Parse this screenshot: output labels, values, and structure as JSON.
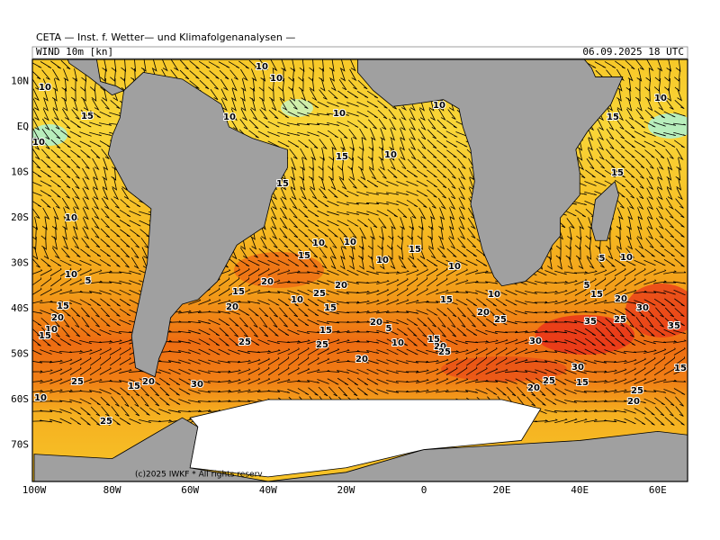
{
  "header": {
    "title": "CETA — Inst. f. Wetter— und Klimafolgenanalysen —",
    "field": "WIND 10m [kn]",
    "valid_time": "06.09.2025 18 UTC"
  },
  "map": {
    "lat_labels": [
      "10N",
      "EQ",
      "10S",
      "20S",
      "30S",
      "40S",
      "50S",
      "60S",
      "70S"
    ],
    "lon_labels": [
      "100W",
      "80W",
      "60W",
      "40W",
      "20W",
      "0",
      "20E",
      "40E",
      "60E"
    ],
    "contour_labels": [
      10,
      10,
      10,
      15,
      10,
      10,
      10,
      15,
      10,
      10,
      15,
      10,
      15,
      15,
      10,
      10,
      10,
      15,
      15,
      10,
      10,
      10,
      5,
      10,
      5,
      5,
      15,
      20,
      25,
      20,
      10,
      15,
      10,
      15,
      20,
      15,
      15,
      20,
      20,
      30,
      25,
      20,
      35,
      25,
      20,
      35,
      10,
      15,
      5,
      15,
      20,
      15,
      25,
      25,
      10,
      25,
      30,
      20,
      30,
      15,
      25,
      15,
      20,
      30,
      25,
      15,
      20,
      25,
      20,
      10,
      25
    ],
    "copyright": "(c)2025 IWKF * All rights reserv"
  }
}
